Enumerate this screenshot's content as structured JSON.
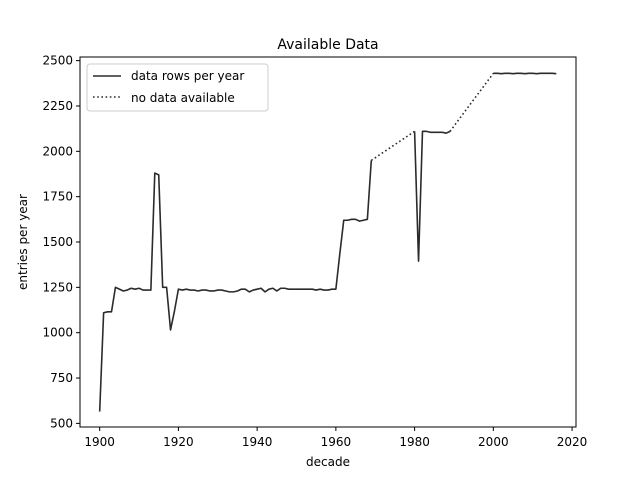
{
  "chart_data": {
    "type": "line",
    "title": "Available Data",
    "xlabel": "decade",
    "ylabel": "entries per year",
    "xlim": [
      1895,
      2021
    ],
    "ylim": [
      480,
      2520
    ],
    "xticks": [
      1900,
      1920,
      1940,
      1960,
      1980,
      2000,
      2020
    ],
    "yticks": [
      500,
      750,
      1000,
      1250,
      1500,
      1750,
      2000,
      2250,
      2500
    ],
    "grid": false,
    "legend_position": "top-left",
    "series": [
      {
        "name": "data rows per year",
        "style": "solid",
        "color": "#2b2b2b",
        "segments": [
          {
            "x": [
              1900,
              1901,
              1902,
              1903,
              1904,
              1905,
              1906,
              1907,
              1908,
              1909,
              1910,
              1911,
              1912,
              1913,
              1914,
              1915,
              1916,
              1917,
              1918,
              1919,
              1920,
              1921,
              1922,
              1923,
              1924,
              1925,
              1926,
              1927,
              1928,
              1929,
              1930,
              1931,
              1932,
              1933,
              1934,
              1935,
              1936,
              1937,
              1938,
              1939,
              1940,
              1941,
              1942,
              1943,
              1944,
              1945,
              1946,
              1947,
              1948,
              1949,
              1950,
              1951,
              1952,
              1953,
              1954,
              1955,
              1956,
              1957,
              1958,
              1959,
              1960,
              1961,
              1962,
              1963,
              1964,
              1965,
              1966,
              1967,
              1968,
              1969
            ],
            "y": [
              565,
              1110,
              1115,
              1115,
              1250,
              1240,
              1230,
              1235,
              1245,
              1240,
              1245,
              1235,
              1235,
              1235,
              1880,
              1870,
              1250,
              1250,
              1015,
              1120,
              1240,
              1235,
              1240,
              1235,
              1235,
              1230,
              1235,
              1235,
              1230,
              1230,
              1235,
              1235,
              1230,
              1225,
              1225,
              1230,
              1240,
              1240,
              1225,
              1235,
              1240,
              1245,
              1225,
              1240,
              1245,
              1230,
              1245,
              1245,
              1240,
              1240,
              1240,
              1240,
              1240,
              1240,
              1240,
              1235,
              1240,
              1235,
              1235,
              1240,
              1240,
              1435,
              1620,
              1620,
              1625,
              1625,
              1615,
              1620,
              1625,
              1950
            ]
          },
          {
            "x": [
              1980,
              1981,
              1982,
              1983,
              1984,
              1985,
              1986,
              1987,
              1988,
              1989
            ],
            "y": [
              2110,
              1395,
              2110,
              2110,
              2105,
              2105,
              2105,
              2105,
              2100,
              2110
            ]
          },
          {
            "x": [
              2000,
              2001,
              2002,
              2003,
              2004,
              2005,
              2006,
              2007,
              2008,
              2009,
              2010,
              2011,
              2012,
              2013,
              2014,
              2015,
              2016
            ],
            "y": [
              2430,
              2430,
              2428,
              2430,
              2430,
              2428,
              2430,
              2430,
              2428,
              2430,
              2430,
              2428,
              2430,
              2430,
              2430,
              2430,
              2428
            ]
          }
        ]
      },
      {
        "name": "no data available",
        "style": "dotted",
        "color": "#2b2b2b",
        "segments": [
          {
            "x": [
              1969,
              1980
            ],
            "y": [
              1950,
              2110
            ]
          },
          {
            "x": [
              1989,
              2000
            ],
            "y": [
              2110,
              2430
            ]
          }
        ]
      }
    ]
  }
}
